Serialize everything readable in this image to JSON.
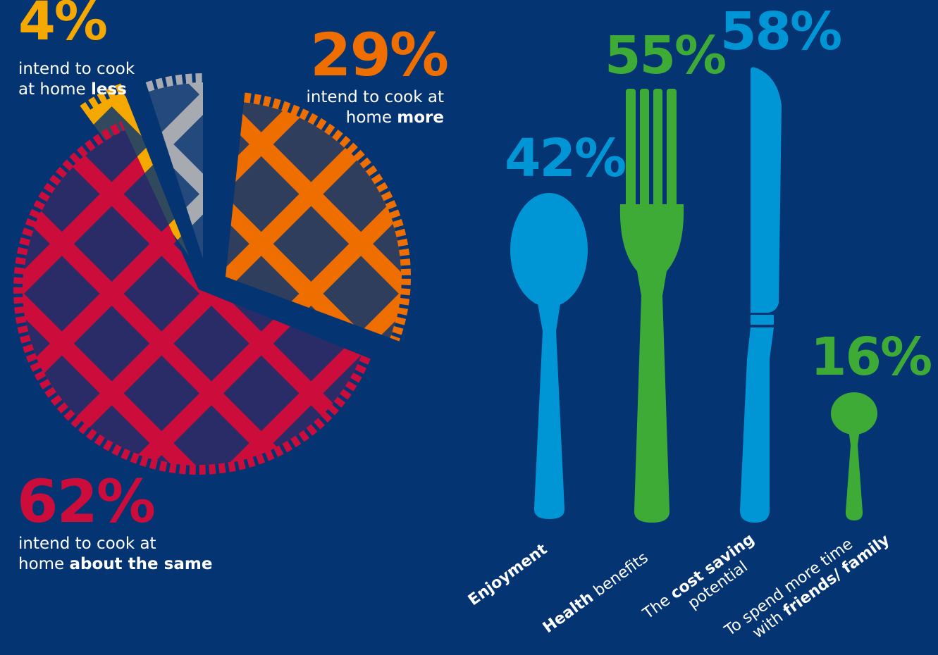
{
  "chart_data": [
    {
      "type": "pie",
      "slices": [
        {
          "label": "intend to cook at home less",
          "value": 4,
          "display": "4%",
          "pre": "intend to cook",
          "pre2": "at home ",
          "bold": "less",
          "color": "#f5a800"
        },
        {
          "label": "intend to cook at home more",
          "value": 29,
          "display": "29%",
          "pre": "intend to cook at",
          "pre2": "home ",
          "bold": "more",
          "color": "#ee6e00"
        },
        {
          "label": "intend to cook at home about the same",
          "value": 62,
          "display": "62%",
          "pre": "intend to cook at",
          "pre2": "home ",
          "bold": "about the same",
          "color": "#cc0c3a"
        },
        {
          "label": "",
          "value": 5,
          "display": "",
          "color": "#a7aab0"
        }
      ]
    },
    {
      "type": "bar",
      "categories": [
        "Enjoyment",
        "Health benefits",
        "The cost saving potential",
        "To spend more time with friends/ family"
      ],
      "values": [
        42,
        55,
        58,
        16
      ],
      "displays": [
        "42%",
        "55%",
        "58%",
        "16%"
      ],
      "colors": [
        "#0096d6",
        "#3eab37",
        "#0096d6",
        "#3eab37"
      ],
      "labels": [
        {
          "l1_bold": "Enjoyment"
        },
        {
          "l1_bold": "Health",
          "l1_rest": " benefits"
        },
        {
          "l1_pre": "The ",
          "l1_bold": "cost saving",
          "l2": "potential"
        },
        {
          "l1": "To spend more time",
          "l2_pre": "with ",
          "l2_bold": "friends/ family"
        }
      ]
    }
  ]
}
